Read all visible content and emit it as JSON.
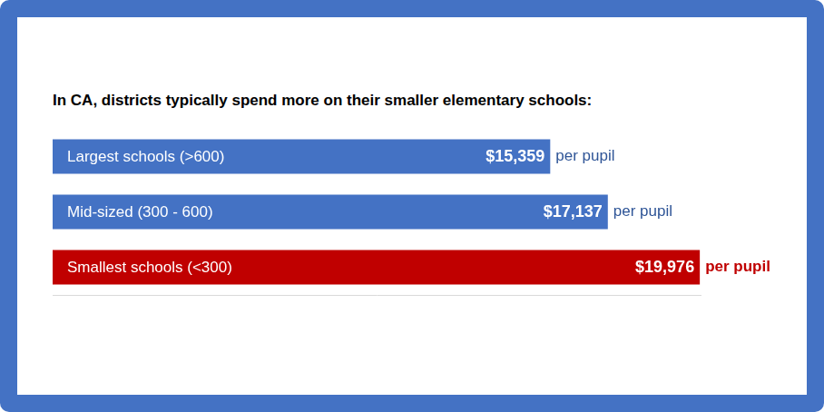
{
  "chart_data": {
    "type": "bar",
    "orientation": "horizontal",
    "title": "In CA, districts typically spend more on their smaller elementary schools:",
    "categories": [
      "Largest schools (>600)",
      "Mid-sized (300 - 600)",
      "Smallest schools (<300)"
    ],
    "values": [
      15359,
      17137,
      19976
    ],
    "value_labels": [
      "$15,359",
      "$17,137",
      "$19,976"
    ],
    "annotations": [
      "per pupil",
      "per pupil",
      "per pupil"
    ],
    "colors": [
      "#4472c4",
      "#4472c4",
      "#c00000"
    ],
    "xlim": [
      0,
      20000
    ],
    "data_labels": true,
    "tick_labels": false,
    "grid": false
  }
}
